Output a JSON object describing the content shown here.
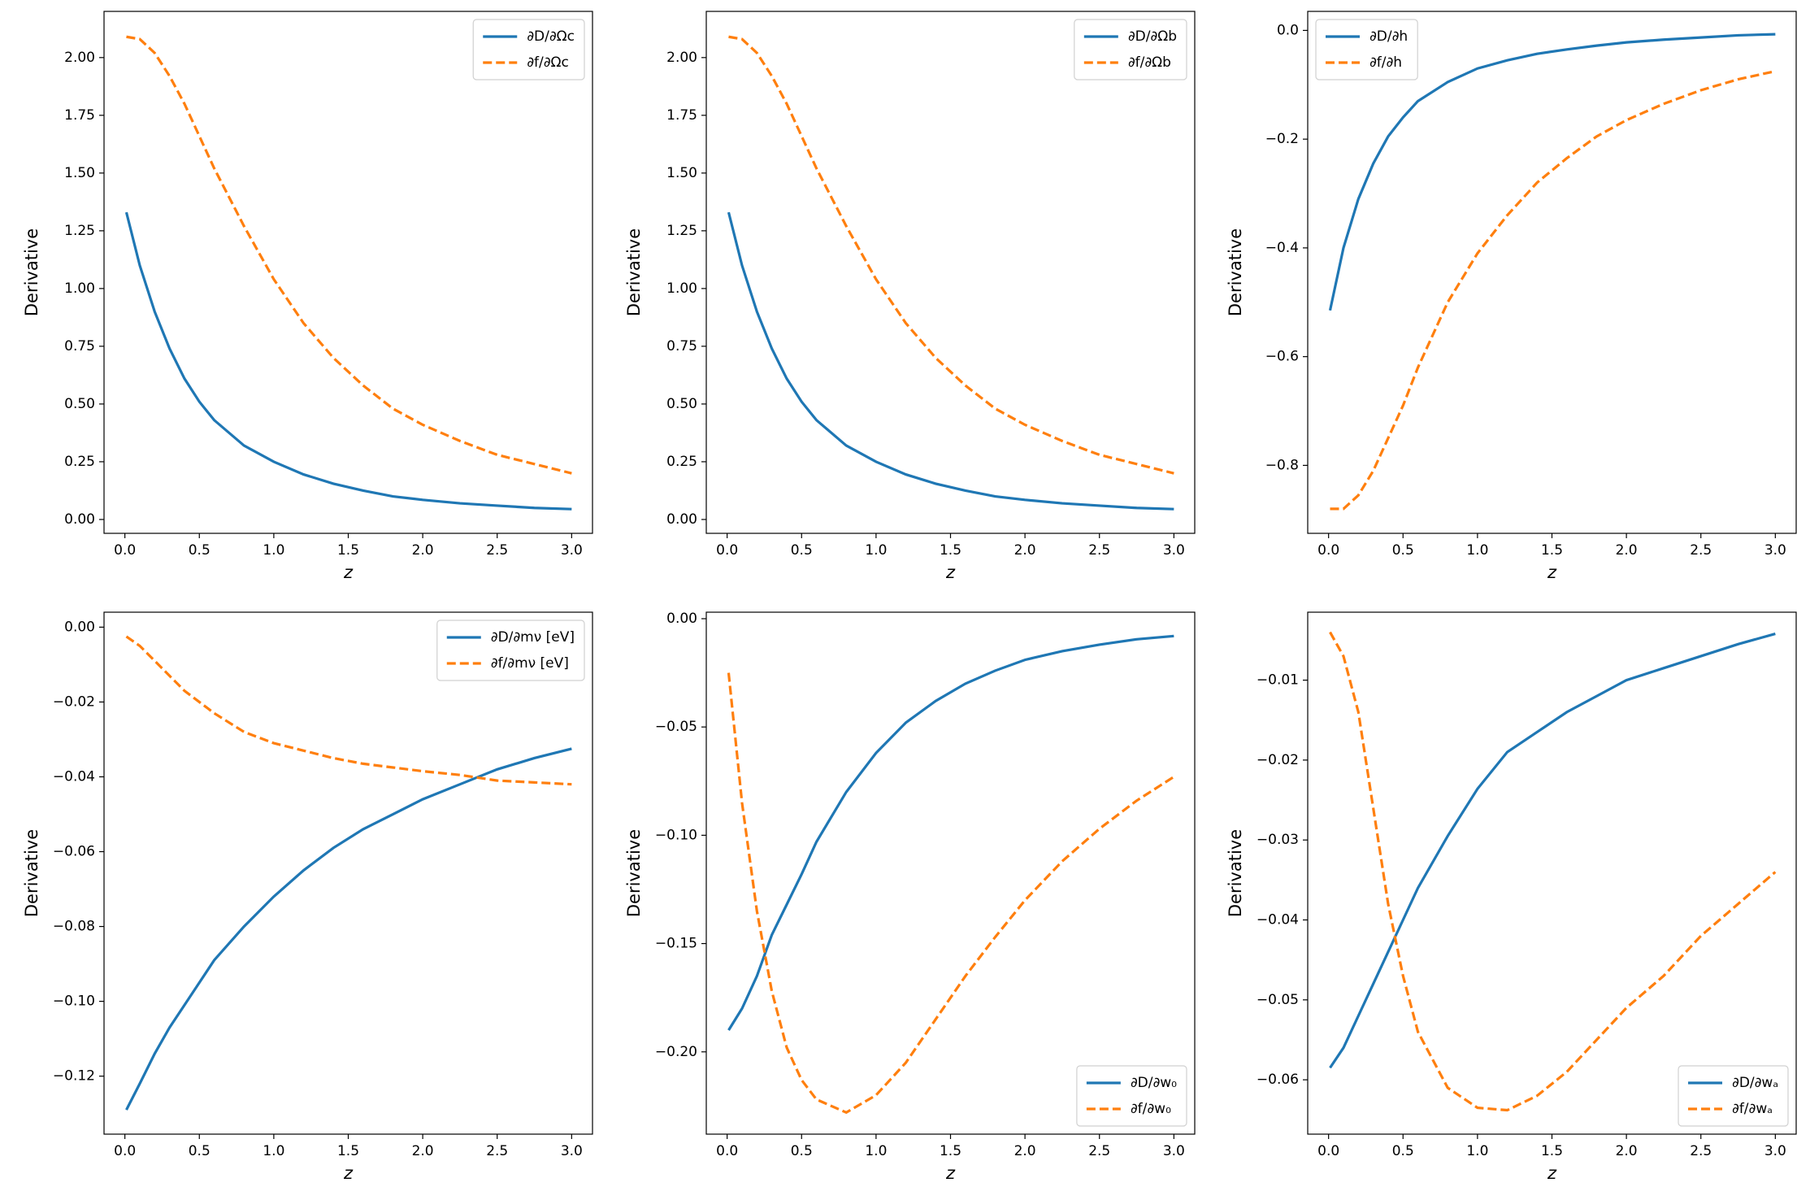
{
  "chart_data": [
    {
      "type": "line",
      "xlabel": "z",
      "ylabel": "Derivative",
      "legend": "upper right",
      "x": [
        0.01,
        0.1,
        0.2,
        0.3,
        0.4,
        0.5,
        0.6,
        0.8,
        1.0,
        1.2,
        1.4,
        1.6,
        1.8,
        2.0,
        2.25,
        2.5,
        2.75,
        3.0
      ],
      "xlim": [
        -0.14,
        3.14
      ],
      "xticks": [
        {
          "value": 0,
          "label": "0.0"
        },
        0.5,
        {
          "value": 1,
          "label": "1.0"
        },
        1.5,
        {
          "value": 2,
          "label": "2.0"
        },
        2.5,
        {
          "value": 3,
          "label": "3.0"
        }
      ],
      "ylim": [
        -0.06,
        2.2
      ],
      "yticks": [
        {
          "value": 0,
          "label": "0.00"
        },
        0.25,
        {
          "value": 0.5,
          "label": "0.50"
        },
        0.75,
        {
          "value": 1,
          "label": "1.00"
        },
        1.25,
        {
          "value": 1.5,
          "label": "1.50"
        },
        1.75,
        {
          "value": 2,
          "label": "2.00"
        }
      ],
      "series": [
        {
          "name": "∂D/∂Ωc",
          "color": "#1f77b4",
          "linestyle": "solid",
          "values": [
            1.33,
            1.1,
            0.9,
            0.74,
            0.61,
            0.51,
            0.43,
            0.32,
            0.25,
            0.195,
            0.155,
            0.125,
            0.1,
            0.085,
            0.07,
            0.06,
            0.05,
            0.045
          ]
        },
        {
          "name": "∂f/∂Ωc",
          "color": "#ff7f0e",
          "linestyle": "dashed",
          "values": [
            2.09,
            2.08,
            2.02,
            1.92,
            1.8,
            1.66,
            1.52,
            1.27,
            1.04,
            0.85,
            0.7,
            0.58,
            0.48,
            0.41,
            0.34,
            0.28,
            0.24,
            0.2
          ]
        }
      ]
    },
    {
      "type": "line",
      "xlabel": "z",
      "ylabel": "Derivative",
      "legend": "upper right",
      "x": [
        0.01,
        0.1,
        0.2,
        0.3,
        0.4,
        0.5,
        0.6,
        0.8,
        1.0,
        1.2,
        1.4,
        1.6,
        1.8,
        2.0,
        2.25,
        2.5,
        2.75,
        3.0
      ],
      "xlim": [
        -0.14,
        3.14
      ],
      "xticks": [
        {
          "value": 0,
          "label": "0.0"
        },
        0.5,
        {
          "value": 1,
          "label": "1.0"
        },
        1.5,
        {
          "value": 2,
          "label": "2.0"
        },
        2.5,
        {
          "value": 3,
          "label": "3.0"
        }
      ],
      "ylim": [
        -0.06,
        2.2
      ],
      "yticks": [
        {
          "value": 0,
          "label": "0.00"
        },
        0.25,
        {
          "value": 0.5,
          "label": "0.50"
        },
        0.75,
        {
          "value": 1,
          "label": "1.00"
        },
        1.25,
        {
          "value": 1.5,
          "label": "1.50"
        },
        1.75,
        {
          "value": 2,
          "label": "2.00"
        }
      ],
      "series": [
        {
          "name": "∂D/∂Ωb",
          "color": "#1f77b4",
          "linestyle": "solid",
          "values": [
            1.33,
            1.1,
            0.9,
            0.74,
            0.61,
            0.51,
            0.43,
            0.32,
            0.25,
            0.195,
            0.155,
            0.125,
            0.1,
            0.085,
            0.07,
            0.06,
            0.05,
            0.045
          ]
        },
        {
          "name": "∂f/∂Ωb",
          "color": "#ff7f0e",
          "linestyle": "dashed",
          "values": [
            2.09,
            2.08,
            2.02,
            1.92,
            1.8,
            1.66,
            1.52,
            1.27,
            1.04,
            0.85,
            0.7,
            0.58,
            0.48,
            0.41,
            0.34,
            0.28,
            0.24,
            0.2
          ]
        }
      ]
    },
    {
      "type": "line",
      "xlabel": "z",
      "ylabel": "Derivative",
      "legend": "upper left",
      "x": [
        0.01,
        0.1,
        0.2,
        0.3,
        0.4,
        0.5,
        0.6,
        0.8,
        1.0,
        1.2,
        1.4,
        1.6,
        1.8,
        2.0,
        2.25,
        2.5,
        2.75,
        3.0
      ],
      "xlim": [
        -0.14,
        3.14
      ],
      "xticks": [
        {
          "value": 0,
          "label": "0.0"
        },
        0.5,
        {
          "value": 1,
          "label": "1.0"
        },
        1.5,
        {
          "value": 2,
          "label": "2.0"
        },
        2.5,
        {
          "value": 3,
          "label": "3.0"
        }
      ],
      "ylim": [
        -0.925,
        0.035
      ],
      "yticks": [
        {
          "value": 0,
          "label": "0.0"
        },
        {
          "value": -0.2,
          "label": "−0.2"
        },
        {
          "value": -0.4,
          "label": "−0.4"
        },
        {
          "value": -0.6,
          "label": "−0.6"
        },
        {
          "value": -0.8,
          "label": "−0.8"
        }
      ],
      "series": [
        {
          "name": "∂D/∂h",
          "color": "#1f77b4",
          "linestyle": "solid",
          "values": [
            -0.515,
            -0.4,
            -0.31,
            -0.245,
            -0.195,
            -0.16,
            -0.13,
            -0.095,
            -0.07,
            -0.055,
            -0.043,
            -0.035,
            -0.028,
            -0.022,
            -0.017,
            -0.013,
            -0.009,
            -0.007
          ]
        },
        {
          "name": "∂f/∂h",
          "color": "#ff7f0e",
          "linestyle": "dashed",
          "values": [
            -0.88,
            -0.88,
            -0.855,
            -0.81,
            -0.75,
            -0.69,
            -0.62,
            -0.5,
            -0.41,
            -0.34,
            -0.28,
            -0.235,
            -0.195,
            -0.165,
            -0.135,
            -0.11,
            -0.09,
            -0.075
          ]
        }
      ]
    },
    {
      "type": "line",
      "xlabel": "z",
      "ylabel": "Derivative",
      "legend": "upper right",
      "x": [
        0.01,
        0.1,
        0.2,
        0.3,
        0.4,
        0.5,
        0.6,
        0.8,
        1.0,
        1.2,
        1.4,
        1.6,
        1.8,
        2.0,
        2.25,
        2.5,
        2.75,
        3.0
      ],
      "xlim": [
        -0.14,
        3.14
      ],
      "xticks": [
        {
          "value": 0,
          "label": "0.0"
        },
        0.5,
        {
          "value": 1,
          "label": "1.0"
        },
        1.5,
        {
          "value": 2,
          "label": "2.0"
        },
        2.5,
        {
          "value": 3,
          "label": "3.0"
        }
      ],
      "ylim": [
        -0.1355,
        0.004
      ],
      "yticks": [
        {
          "value": 0,
          "label": "0.00"
        },
        {
          "value": -0.02,
          "label": "−0.02"
        },
        {
          "value": -0.04,
          "label": "−0.04"
        },
        {
          "value": -0.06,
          "label": "−0.06"
        },
        {
          "value": -0.08,
          "label": "−0.08"
        },
        {
          "value": -0.1,
          "label": "−0.10"
        },
        {
          "value": -0.12,
          "label": "−0.12"
        }
      ],
      "series": [
        {
          "name": "∂D/∂mν [eV]",
          "color": "#1f77b4",
          "linestyle": "solid",
          "values": [
            -0.129,
            -0.122,
            -0.114,
            -0.107,
            -0.101,
            -0.095,
            -0.089,
            -0.08,
            -0.072,
            -0.065,
            -0.059,
            -0.054,
            -0.05,
            -0.046,
            -0.042,
            -0.038,
            -0.035,
            -0.0325
          ]
        },
        {
          "name": "∂f/∂mν [eV]",
          "color": "#ff7f0e",
          "linestyle": "dashed",
          "values": [
            -0.0025,
            -0.005,
            -0.009,
            -0.013,
            -0.017,
            -0.02,
            -0.023,
            -0.028,
            -0.031,
            -0.033,
            -0.035,
            -0.0365,
            -0.0375,
            -0.0385,
            -0.0395,
            -0.041,
            -0.0415,
            -0.042
          ]
        }
      ]
    },
    {
      "type": "line",
      "xlabel": "z",
      "ylabel": "Derivative",
      "legend": "lower right",
      "x": [
        0.01,
        0.1,
        0.2,
        0.3,
        0.4,
        0.5,
        0.6,
        0.8,
        1.0,
        1.2,
        1.4,
        1.6,
        1.8,
        2.0,
        2.25,
        2.5,
        2.75,
        3.0
      ],
      "xlim": [
        -0.14,
        3.14
      ],
      "xticks": [
        {
          "value": 0,
          "label": "0.0"
        },
        0.5,
        {
          "value": 1,
          "label": "1.0"
        },
        1.5,
        {
          "value": 2,
          "label": "2.0"
        },
        2.5,
        {
          "value": 3,
          "label": "3.0"
        }
      ],
      "ylim": [
        -0.238,
        0.003
      ],
      "yticks": [
        {
          "value": 0,
          "label": "0.00"
        },
        {
          "value": -0.05,
          "label": "−0.05"
        },
        {
          "value": -0.1,
          "label": "−0.10"
        },
        {
          "value": -0.15,
          "label": "−0.15"
        },
        {
          "value": -0.2,
          "label": "−0.20"
        }
      ],
      "series": [
        {
          "name": "∂D/∂w₀",
          "color": "#1f77b4",
          "linestyle": "solid",
          "values": [
            -0.19,
            -0.18,
            -0.165,
            -0.146,
            -0.132,
            -0.118,
            -0.103,
            -0.08,
            -0.062,
            -0.048,
            -0.038,
            -0.03,
            -0.024,
            -0.019,
            -0.015,
            -0.012,
            -0.0095,
            -0.008
          ]
        },
        {
          "name": "∂f/∂w₀",
          "color": "#ff7f0e",
          "linestyle": "dashed",
          "values": [
            -0.025,
            -0.085,
            -0.135,
            -0.172,
            -0.198,
            -0.213,
            -0.222,
            -0.228,
            -0.22,
            -0.205,
            -0.185,
            -0.165,
            -0.147,
            -0.13,
            -0.112,
            -0.097,
            -0.084,
            -0.073
          ]
        }
      ]
    },
    {
      "type": "line",
      "xlabel": "z",
      "ylabel": "Derivative",
      "legend": "lower right",
      "x": [
        0.01,
        0.1,
        0.2,
        0.3,
        0.4,
        0.5,
        0.6,
        0.8,
        1.0,
        1.2,
        1.4,
        1.6,
        1.8,
        2.0,
        2.25,
        2.5,
        2.75,
        3.0
      ],
      "xlim": [
        -0.14,
        3.14
      ],
      "xticks": [
        {
          "value": 0,
          "label": "0.0"
        },
        0.5,
        {
          "value": 1,
          "label": "1.0"
        },
        1.5,
        {
          "value": 2,
          "label": "2.0"
        },
        2.5,
        {
          "value": 3,
          "label": "3.0"
        }
      ],
      "ylim": [
        -0.0668,
        -0.0015
      ],
      "yticks": [
        {
          "value": -0.01,
          "label": "−0.01"
        },
        {
          "value": -0.02,
          "label": "−0.02"
        },
        {
          "value": -0.03,
          "label": "−0.03"
        },
        {
          "value": -0.04,
          "label": "−0.04"
        },
        {
          "value": -0.05,
          "label": "−0.05"
        },
        {
          "value": -0.06,
          "label": "−0.06"
        }
      ],
      "series": [
        {
          "name": "∂D/∂wₐ",
          "color": "#1f77b4",
          "linestyle": "solid",
          "values": [
            -0.0585,
            -0.056,
            -0.052,
            -0.048,
            -0.044,
            -0.04,
            -0.036,
            -0.0295,
            -0.0236,
            -0.019,
            -0.0165,
            -0.014,
            -0.012,
            -0.01,
            -0.0085,
            -0.007,
            -0.0055,
            -0.0042
          ]
        },
        {
          "name": "∂f/∂wₐ",
          "color": "#ff7f0e",
          "linestyle": "dashed",
          "values": [
            -0.004,
            -0.007,
            -0.014,
            -0.026,
            -0.038,
            -0.047,
            -0.054,
            -0.061,
            -0.0635,
            -0.0638,
            -0.062,
            -0.059,
            -0.055,
            -0.051,
            -0.047,
            -0.042,
            -0.038,
            -0.034
          ]
        }
      ]
    }
  ]
}
